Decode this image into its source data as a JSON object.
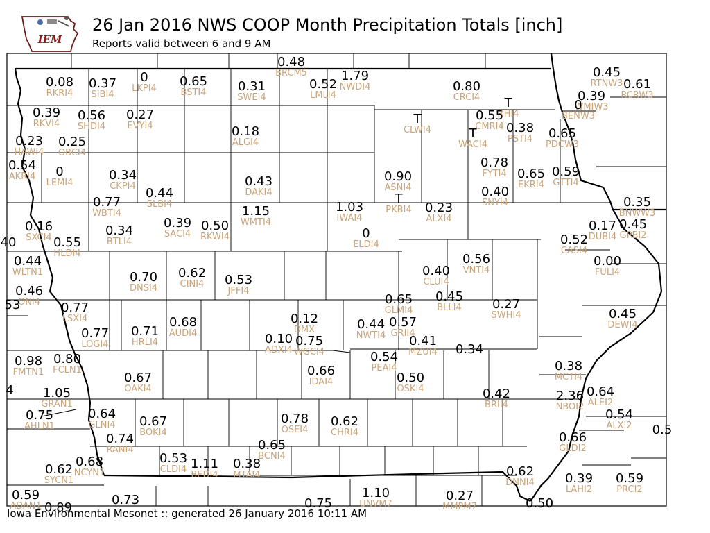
{
  "header": {
    "logo_text": "IEM",
    "title": "26 Jan 2016 NWS COOP Month Precipitation Totals [inch]",
    "subtitle": "Reports valid between 6 and 9 AM"
  },
  "footer": "Iowa Environmental Mesonet :: generated 26 January 2016 10:11 AM",
  "colors": {
    "station_id": "#c9a479",
    "value": "#000000",
    "border": "#000000"
  },
  "stations": [
    {
      "id": "BRCM5",
      "value": "0.48"
    },
    {
      "id": "RKRI4",
      "value": "0.08"
    },
    {
      "id": "SIBI4",
      "value": "0.37"
    },
    {
      "id": "LKPI4",
      "value": "0"
    },
    {
      "id": "BSTI4",
      "value": "0.65"
    },
    {
      "id": "SWEI4",
      "value": "0.31"
    },
    {
      "id": "LMLI4",
      "value": "0.52"
    },
    {
      "id": "NWDI4",
      "value": "1.79"
    },
    {
      "id": "CRCI4",
      "value": "0.80"
    },
    {
      "id": "RTNW3",
      "value": "0.45"
    },
    {
      "id": "RCRW3",
      "value": "0.61"
    },
    {
      "id": "WMIW3",
      "value": "0.39"
    },
    {
      "id": "BENW3",
      "value": "0"
    },
    {
      "id": "RKVI4",
      "value": "0.39"
    },
    {
      "id": "SHDI4",
      "value": "0.56"
    },
    {
      "id": "EVYI4",
      "value": "0.27"
    },
    {
      "id": "CLWI4",
      "value": "T"
    },
    {
      "id": "RHI4",
      "value": "T"
    },
    {
      "id": "CMRI4",
      "value": "0.55"
    },
    {
      "id": "PSTI4",
      "value": "0.38"
    },
    {
      "id": "WACI4",
      "value": "T"
    },
    {
      "id": "PDCW3",
      "value": "0.65"
    },
    {
      "id": "HAWI4",
      "value": "0.23"
    },
    {
      "id": "OBCI4",
      "value": "0.25"
    },
    {
      "id": "ALGI4",
      "value": "0.18"
    },
    {
      "id": "AKRI4",
      "value": "0.54"
    },
    {
      "id": "LEMI4",
      "value": "0"
    },
    {
      "id": "CKPI4",
      "value": "0.34"
    },
    {
      "id": "FYTI4",
      "value": "0.78"
    },
    {
      "id": "EKRI4",
      "value": "0.65"
    },
    {
      "id": "GTTI4",
      "value": "0.59"
    },
    {
      "id": "ASNI4",
      "value": "0.90"
    },
    {
      "id": "DAKI4",
      "value": "0.43"
    },
    {
      "id": "SLBI4",
      "value": "0.44"
    },
    {
      "id": "PKBI4",
      "value": "T"
    },
    {
      "id": "SNYI4",
      "value": "0.40"
    },
    {
      "id": "WBTI4",
      "value": "0.77"
    },
    {
      "id": "IWAI4",
      "value": "1.03"
    },
    {
      "id": "ALXI4",
      "value": "0.23"
    },
    {
      "id": "BNWW3",
      "value": "0.35"
    },
    {
      "id": "WMTI4",
      "value": "1.15"
    },
    {
      "id": "SACI4",
      "value": "0.39"
    },
    {
      "id": "SXCI4",
      "value": "0.16"
    },
    {
      "id": "RKWI4",
      "value": "0.50"
    },
    {
      "id": "BTLI4",
      "value": "0.34"
    },
    {
      "id": "ELDI4",
      "value": "0"
    },
    {
      "id": "DUBI4",
      "value": "0.17"
    },
    {
      "id": "GPBI2",
      "value": "0.45"
    },
    {
      "id": "CASI4",
      "value": "0.52"
    },
    {
      "id": "HLDI4",
      "value": "0.55"
    },
    {
      "id": "NE40",
      "value": "40"
    },
    {
      "id": "VNTI4",
      "value": "0.56"
    },
    {
      "id": "WLTN1",
      "value": "0.44"
    },
    {
      "id": "FULI4",
      "value": "0.00"
    },
    {
      "id": "CLUI4",
      "value": "0.40"
    },
    {
      "id": "DNSI4",
      "value": "0.70"
    },
    {
      "id": "CINI4",
      "value": "0.62"
    },
    {
      "id": "JFFI4",
      "value": "0.53"
    },
    {
      "id": "ONI4",
      "value": "0.46"
    },
    {
      "id": "BLLI4",
      "value": "0.45"
    },
    {
      "id": "GLMI4",
      "value": "0.65"
    },
    {
      "id": "SWHI4",
      "value": "0.27"
    },
    {
      "id": "NE53",
      "value": "53"
    },
    {
      "id": "LSXI4",
      "value": "0.77"
    },
    {
      "id": "DEWI4",
      "value": "0.45"
    },
    {
      "id": "DMX",
      "value": "0.12"
    },
    {
      "id": "NWTI4",
      "value": "0.44"
    },
    {
      "id": "GRII4",
      "value": "0.57"
    },
    {
      "id": "HRLI4",
      "value": "0.71"
    },
    {
      "id": "AUDI4",
      "value": "0.68"
    },
    {
      "id": "LOGI4",
      "value": "0.77"
    },
    {
      "id": "ADXI4",
      "value": "0.10"
    },
    {
      "id": "WGCI4",
      "value": "0.75"
    },
    {
      "id": "MZUI4",
      "value": "0.41"
    },
    {
      "id": "NENI4",
      "value": "0.34"
    },
    {
      "id": "PEAI4",
      "value": "0.54"
    },
    {
      "id": "FMTN1",
      "value": "0.98"
    },
    {
      "id": "FCLN1",
      "value": "0.80"
    },
    {
      "id": "MCTI4",
      "value": "0.38"
    },
    {
      "id": "IDAI4",
      "value": "0.66"
    },
    {
      "id": "OAKI4",
      "value": "0.67"
    },
    {
      "id": "OSKI4",
      "value": "0.50"
    },
    {
      "id": "NE4",
      "value": "4"
    },
    {
      "id": "GRAN1",
      "value": "1.05"
    },
    {
      "id": "BRII4",
      "value": "0.42"
    },
    {
      "id": "ALEI2",
      "value": "0.64"
    },
    {
      "id": "NBOI2",
      "value": "2.36"
    },
    {
      "id": "AHLN1",
      "value": "0.75"
    },
    {
      "id": "GLNI4",
      "value": "0.64"
    },
    {
      "id": "BOKI4",
      "value": "0.67"
    },
    {
      "id": "OSEI4",
      "value": "0.78"
    },
    {
      "id": "CHRI4",
      "value": "0.62"
    },
    {
      "id": "ALXI2",
      "value": "0.54"
    },
    {
      "id": "IL5",
      "value": "0.5"
    },
    {
      "id": "RANI4",
      "value": "0.74"
    },
    {
      "id": "GLDI2",
      "value": "0.66"
    },
    {
      "id": "BCNI4",
      "value": "0.65"
    },
    {
      "id": "CLDI4",
      "value": "0.53"
    },
    {
      "id": "BEDI4",
      "value": "1.11"
    },
    {
      "id": "MTAI4",
      "value": "0.38"
    },
    {
      "id": "NCYN1",
      "value": "0.68"
    },
    {
      "id": "SYCN1",
      "value": "0.62"
    },
    {
      "id": "DNNI4",
      "value": "0.62"
    },
    {
      "id": "LAHI2",
      "value": "0.39"
    },
    {
      "id": "PRCI2",
      "value": "0.59"
    },
    {
      "id": "ADAN1",
      "value": "0.59"
    },
    {
      "id": "UNVM7",
      "value": "1.10"
    },
    {
      "id": "MMPM7",
      "value": "0.27"
    },
    {
      "id": "NE089",
      "value": "0.89"
    },
    {
      "id": "MO073",
      "value": "0.73"
    },
    {
      "id": "MO075",
      "value": "0.75"
    },
    {
      "id": "IL050",
      "value": "0.50"
    }
  ]
}
